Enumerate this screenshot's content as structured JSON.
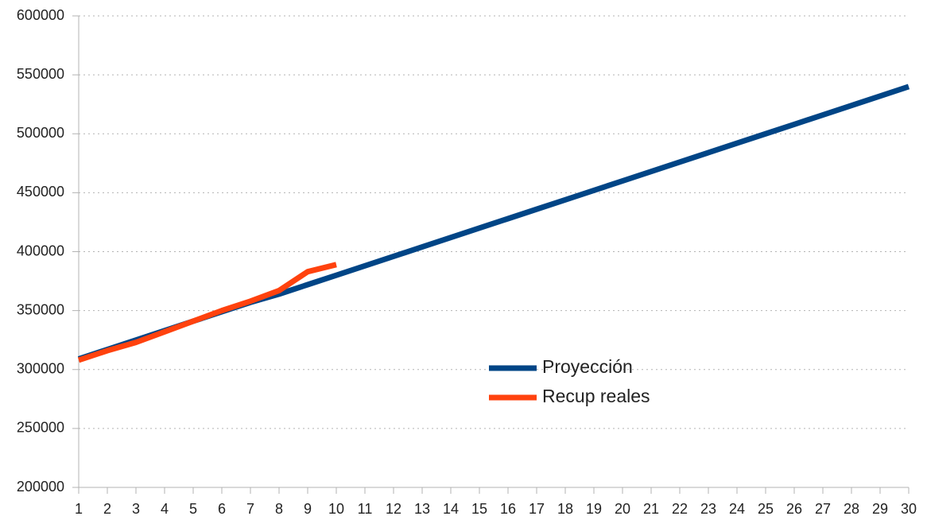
{
  "chart_data": {
    "type": "line",
    "x": [
      1,
      2,
      3,
      4,
      5,
      6,
      7,
      8,
      9,
      10,
      11,
      12,
      13,
      14,
      15,
      16,
      17,
      18,
      19,
      20,
      21,
      22,
      23,
      24,
      25,
      26,
      27,
      28,
      29,
      30
    ],
    "series": [
      {
        "name": "Proyección",
        "color": "#004586",
        "values": [
          309000,
          317000,
          325000,
          333000,
          341000,
          349000,
          357000,
          364000,
          372000,
          380000,
          388000,
          396000,
          404000,
          412000,
          420000,
          428000,
          436000,
          444000,
          452000,
          460000,
          468000,
          476000,
          484000,
          492000,
          500000,
          508000,
          516000,
          524000,
          532000,
          540000
        ]
      },
      {
        "name": "Recup reales",
        "color": "#ff420e",
        "values": [
          308000,
          316000,
          323000,
          332000,
          341000,
          350000,
          358000,
          367000,
          383000,
          389000,
          null,
          null,
          null,
          null,
          null,
          null,
          null,
          null,
          null,
          null,
          null,
          null,
          null,
          null,
          null,
          null,
          null,
          null,
          null,
          null
        ]
      }
    ],
    "xlim": [
      1,
      30
    ],
    "xticks": [
      1,
      2,
      3,
      4,
      5,
      6,
      7,
      8,
      9,
      10,
      11,
      12,
      13,
      14,
      15,
      16,
      17,
      18,
      19,
      20,
      21,
      22,
      23,
      24,
      25,
      26,
      27,
      28,
      29,
      30
    ],
    "ylim": [
      200000,
      600000
    ],
    "yticks": [
      200000,
      250000,
      300000,
      350000,
      400000,
      450000,
      500000,
      550000,
      600000
    ],
    "grid": true,
    "legend": "center"
  }
}
